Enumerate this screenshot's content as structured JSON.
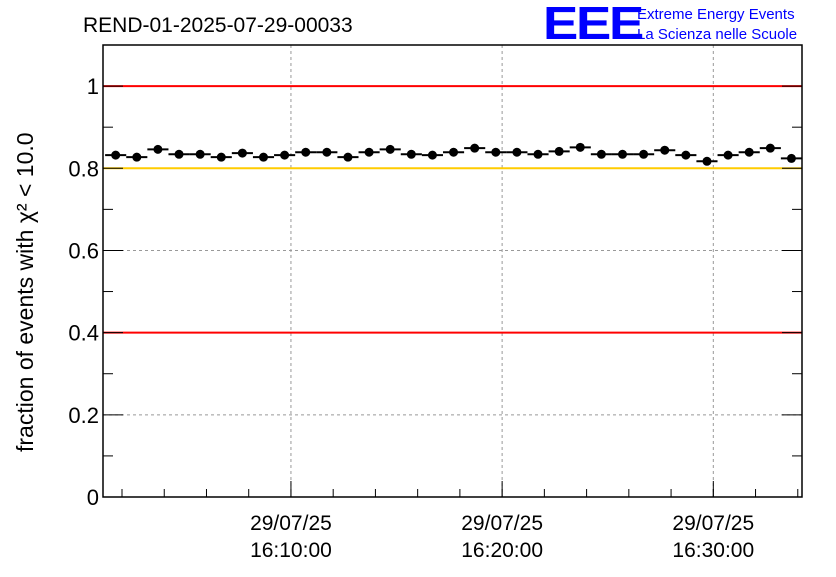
{
  "logo": {
    "mark": "EEE",
    "line1": "Extreme Energy Events",
    "line2": "La Scienza nelle Scuole",
    "color": "#0000ff"
  },
  "chart_data": {
    "type": "scatter",
    "title": "REND-01-2025-07-29-00033",
    "xlabel": "",
    "ylabel": "fraction of events with χ² < 10.0",
    "ylim": [
      0,
      1.1
    ],
    "xlim_minutes_after_1600": [
      1.1,
      34.2
    ],
    "x_ticks": [
      {
        "minute": 10,
        "date": "29/07/25",
        "time": "16:10:00"
      },
      {
        "minute": 20,
        "date": "29/07/25",
        "time": "16:20:00"
      },
      {
        "minute": 30,
        "date": "29/07/25",
        "time": "16:30:00"
      }
    ],
    "y_ticks": [
      "0",
      "0.2",
      "0.4",
      "0.6",
      "0.8",
      "1"
    ],
    "grid": true,
    "x_minutes_start": 1.7,
    "x_step_minutes": 1.0,
    "values": [
      0.832,
      0.827,
      0.846,
      0.834,
      0.834,
      0.827,
      0.837,
      0.827,
      0.832,
      0.839,
      0.839,
      0.827,
      0.839,
      0.846,
      0.834,
      0.832,
      0.839,
      0.849,
      0.839,
      0.839,
      0.834,
      0.841,
      0.851,
      0.834,
      0.834,
      0.834,
      0.844,
      0.832,
      0.817,
      0.832,
      0.839,
      0.849,
      0.824
    ],
    "reference_lines": [
      {
        "y": 1.0,
        "color": "#ff0000"
      },
      {
        "y": 0.8,
        "color": "#ffcc00"
      },
      {
        "y": 0.4,
        "color": "#ff0000"
      }
    ]
  }
}
